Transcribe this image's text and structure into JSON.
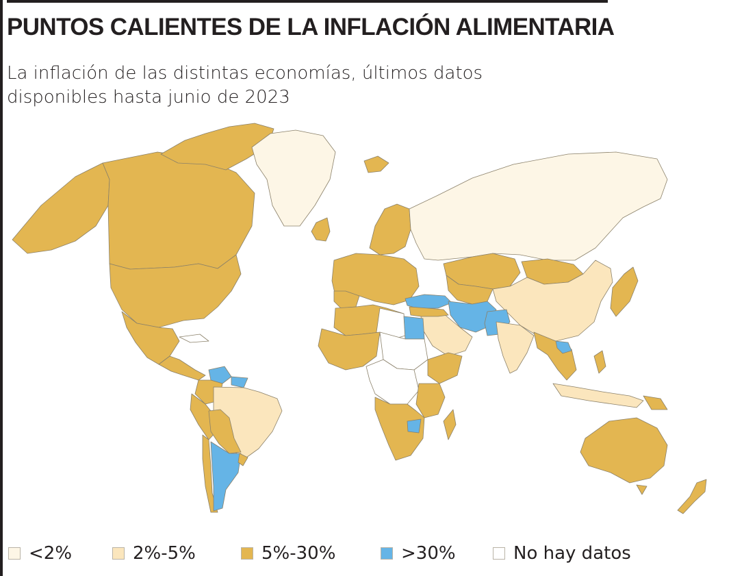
{
  "title": "PUNTOS CALIENTES DE LA INFLACIÓN ALIMENTARIA",
  "subtitle": "La inflación de las distintas economías, últimos datos disponibles hasta junio de 2023",
  "colors": {
    "lt2": "#fdf6e6",
    "r2_5": "#fbe6bd",
    "r5_30": "#e3b651",
    "gt30": "#65b4e6",
    "nodata": "#ffffff"
  },
  "legend": [
    {
      "key": "lt2",
      "label": "<2%",
      "color": "#fdf6e6"
    },
    {
      "key": "r2_5",
      "label": "2%-5%",
      "color": "#fbe6bd"
    },
    {
      "key": "r5_30",
      "label": "5%-30%",
      "color": "#e3b651"
    },
    {
      "key": "gt30",
      "label": ">30%",
      "color": "#65b4e6"
    },
    {
      "key": "nodata",
      "label": "No hay datos",
      "color": "#ffffff"
    }
  ]
}
